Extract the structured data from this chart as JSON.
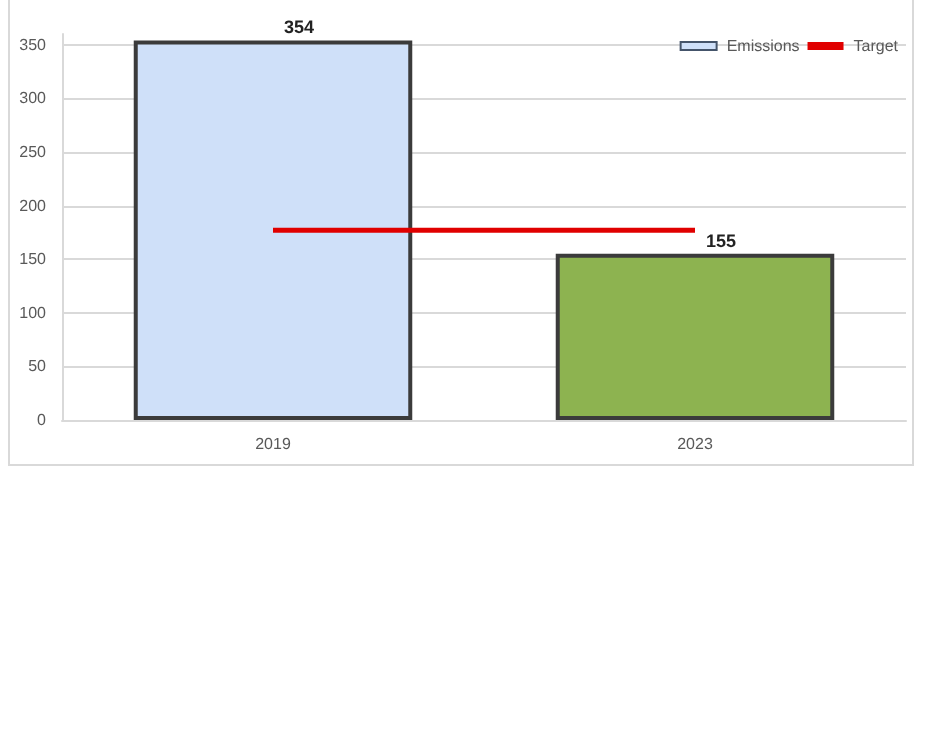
{
  "chart_data": {
    "type": "bar",
    "categories": [
      "2019",
      "2023"
    ],
    "series": [
      {
        "name": "Emissions",
        "colors": [
          "#cfe0f9",
          "#8db350"
        ],
        "values": [
          354,
          155
        ],
        "value_labels": [
          "354",
          "155"
        ]
      },
      {
        "name": "Target",
        "type": "line",
        "color": "#e00000",
        "values": [
          177,
          177
        ]
      }
    ],
    "ylim": [
      0,
      360
    ],
    "yticks": [
      0,
      50,
      100,
      150,
      200,
      250,
      300,
      350
    ],
    "grid": "y",
    "legend": "top right",
    "marker": "none"
  }
}
